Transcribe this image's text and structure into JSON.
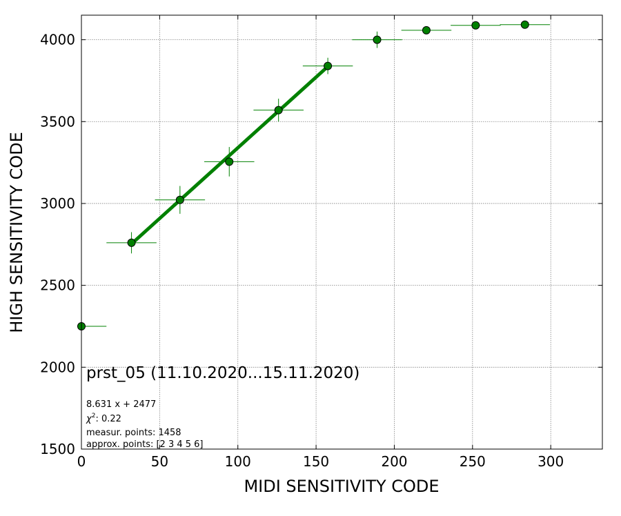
{
  "chart_data": {
    "type": "scatter",
    "title": "prst_05 (11.10.2020...15.11.2020)",
    "xlabel": "MIDI SENSITIVITY CODE",
    "ylabel": "HIGH SENSITIVITY CODE",
    "xlim": [
      0,
      333
    ],
    "ylim": [
      1500,
      4150
    ],
    "x_ticks": [
      0,
      50,
      100,
      150,
      200,
      250,
      300
    ],
    "y_ticks": [
      1500,
      2000,
      2500,
      3000,
      3500,
      4000
    ],
    "grid": true,
    "series": [
      {
        "kind": "points-with-errorbars",
        "color": "#008000",
        "marker_color": "#008000",
        "points": [
          {
            "x": 0,
            "y": 2250,
            "xerr": 16,
            "yerr": 0
          },
          {
            "x": 32,
            "y": 2760,
            "xerr": 16,
            "yerr": 65
          },
          {
            "x": 63,
            "y": 3022,
            "xerr": 16,
            "yerr": 85
          },
          {
            "x": 94.5,
            "y": 3255,
            "xerr": 16,
            "yerr": 90
          },
          {
            "x": 126,
            "y": 3570,
            "xerr": 16,
            "yerr": 70
          },
          {
            "x": 157.5,
            "y": 3840,
            "xerr": 16,
            "yerr": 50
          },
          {
            "x": 189,
            "y": 4000,
            "xerr": 16,
            "yerr": 50
          },
          {
            "x": 220.5,
            "y": 4058,
            "xerr": 16,
            "yerr": 0
          },
          {
            "x": 252,
            "y": 4088,
            "xerr": 16,
            "yerr": 0
          },
          {
            "x": 283.5,
            "y": 4092,
            "xerr": 16,
            "yerr": 0
          }
        ]
      },
      {
        "kind": "fit-line",
        "color": "#008000",
        "slope": 8.631,
        "intercept": 2477,
        "x_range": [
          32,
          157.5
        ]
      }
    ],
    "annotations": {
      "fit_equation": "8.631 x + 2477",
      "chi2_prefix": "χ",
      "chi2_power": "2",
      "chi2_value": ": 0.22",
      "measur_points": "measur. points: 1458",
      "approx_points": "approx. points: [2 3 4 5 6]"
    }
  }
}
